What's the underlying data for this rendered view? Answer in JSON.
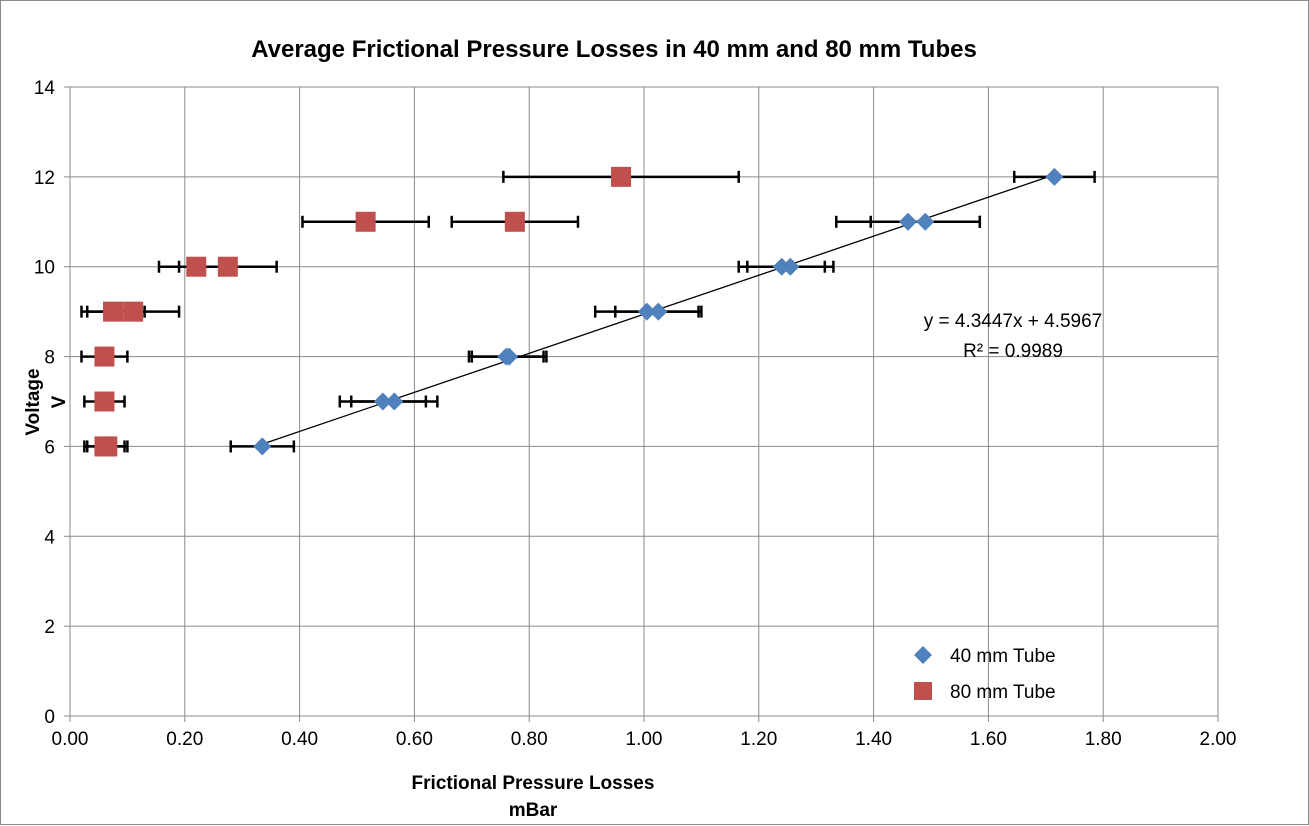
{
  "chart_data": {
    "type": "scatter",
    "title": "Average Frictional Pressure Losses in 40 mm and 80 mm Tubes",
    "xlabel": "Frictional Pressure Losses",
    "xlabel_unit": "mBar",
    "ylabel": "Voltage",
    "ylabel_unit": "V",
    "xlim": [
      0,
      2
    ],
    "ylim": [
      0,
      14
    ],
    "x_ticks": [
      "0.00",
      "0.20",
      "0.40",
      "0.60",
      "0.80",
      "1.00",
      "1.20",
      "1.40",
      "1.60",
      "1.80",
      "2.00"
    ],
    "y_ticks": [
      "0",
      "2",
      "4",
      "6",
      "8",
      "10",
      "12",
      "14"
    ],
    "grid": true,
    "legend_position": "bottom-right",
    "series": [
      {
        "name": "40 mm Tube",
        "marker": "diamond",
        "color": "#4F81BD",
        "points": [
          {
            "x": 0.335,
            "y": 6,
            "err": 0.055
          },
          {
            "x": 0.545,
            "y": 7,
            "err": 0.075
          },
          {
            "x": 0.565,
            "y": 7,
            "err": 0.075
          },
          {
            "x": 0.76,
            "y": 8,
            "err": 0.065
          },
          {
            "x": 0.765,
            "y": 8,
            "err": 0.065
          },
          {
            "x": 1.005,
            "y": 9,
            "err": 0.09
          },
          {
            "x": 1.025,
            "y": 9,
            "err": 0.075
          },
          {
            "x": 1.24,
            "y": 10,
            "err": 0.075
          },
          {
            "x": 1.255,
            "y": 10,
            "err": 0.075
          },
          {
            "x": 1.46,
            "y": 11,
            "err": 0.125
          },
          {
            "x": 1.49,
            "y": 11,
            "err": 0.095
          },
          {
            "x": 1.715,
            "y": 12,
            "err": 0.07
          }
        ]
      },
      {
        "name": "80 mm Tube",
        "marker": "square",
        "color": "#C0504D",
        "points": [
          {
            "x": 0.06,
            "y": 6,
            "err": 0.035
          },
          {
            "x": 0.065,
            "y": 6,
            "err": 0.035
          },
          {
            "x": 0.06,
            "y": 7,
            "err": 0.035
          },
          {
            "x": 0.06,
            "y": 8,
            "err": 0.04
          },
          {
            "x": 0.075,
            "y": 9,
            "err": 0.055
          },
          {
            "x": 0.11,
            "y": 9,
            "err": 0.08
          },
          {
            "x": 0.22,
            "y": 10,
            "err": 0.065
          },
          {
            "x": 0.275,
            "y": 10,
            "err": 0.085
          },
          {
            "x": 0.515,
            "y": 11,
            "err": 0.11
          },
          {
            "x": 0.775,
            "y": 11,
            "err": 0.11
          },
          {
            "x": 0.96,
            "y": 12,
            "err": 0.205
          }
        ]
      }
    ],
    "trendline": {
      "series": "40 mm Tube",
      "slope": 4.3447,
      "intercept": 4.5967,
      "x_range": [
        0.335,
        1.715
      ],
      "equation_label": "y = 4.3447x + 4.5967",
      "r2_label": "R² = 0.9989"
    }
  }
}
